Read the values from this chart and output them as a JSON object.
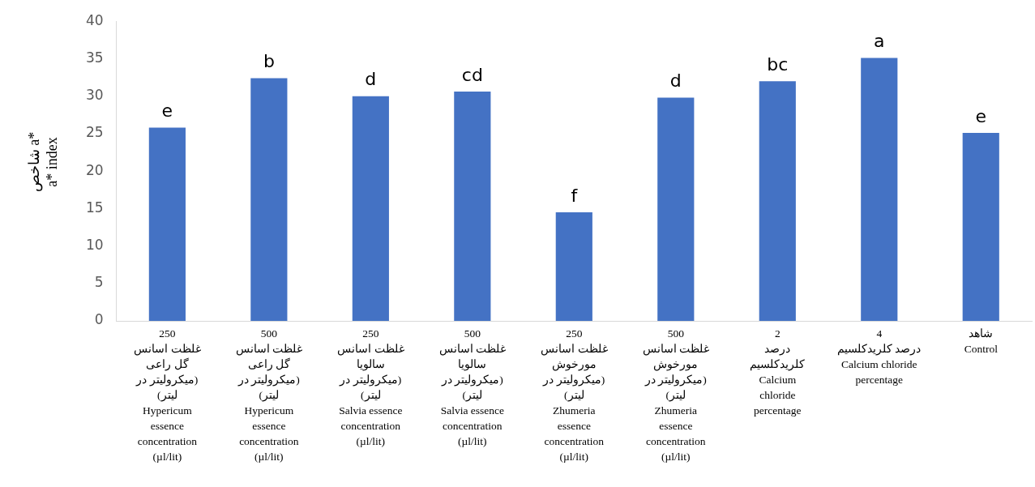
{
  "chart_data": {
    "type": "bar",
    "ylabel": "شاخص a*\na* index",
    "categories": [
      "250\nغلظت اسانس\nگل راعی\n(میکرولیتر در\nلیتر)\nHypericum\nessence\nconcentration\n(µl/lit)",
      "500\nغلظت اسانس\nگل راعی\n(میکرولیتر در\nلیتر)\nHypericum\nessence\nconcentration\n(µl/lit)",
      "250\nغلظت اسانس\nسالویا\n(میکرولیتر در\nلیتر)\nSalvia essence\nconcentration\n(µl/lit)",
      "500\nغلظت اسانس\nسالویا\n(میکرولیتر در\nلیتر)\nSalvia essence\nconcentration\n(µl/lit)",
      "250\nغلظت اسانس\nمورخوش\n(میکرولیتر در\nلیتر)\nZhumeria\nessence\nconcentration\n(µl/lit)",
      "500\nغلظت اسانس\nمورخوش\n(میکرولیتر در\nلیتر)\nZhumeria\nessence\nconcentration\n(µl/lit)",
      "2\nدرصد\nکلریدکلسیم\nCalcium\nchloride\npercentage",
      "4\nدرصد کلریدکلسیم\nCalcium chloride\npercentage",
      "شاهد\nControl"
    ],
    "values": [
      25.8,
      32.4,
      30.0,
      30.6,
      14.5,
      29.8,
      32.0,
      35.1,
      25.1
    ],
    "value_labels": [
      "e",
      "b",
      "d",
      "cd",
      "f",
      "d",
      "bc",
      "a",
      "e"
    ],
    "color": "#4472c4",
    "ylim": [
      0,
      40
    ],
    "yticks": [
      0,
      5,
      10,
      15,
      20,
      25,
      30,
      35,
      40
    ],
    "grid": false
  }
}
